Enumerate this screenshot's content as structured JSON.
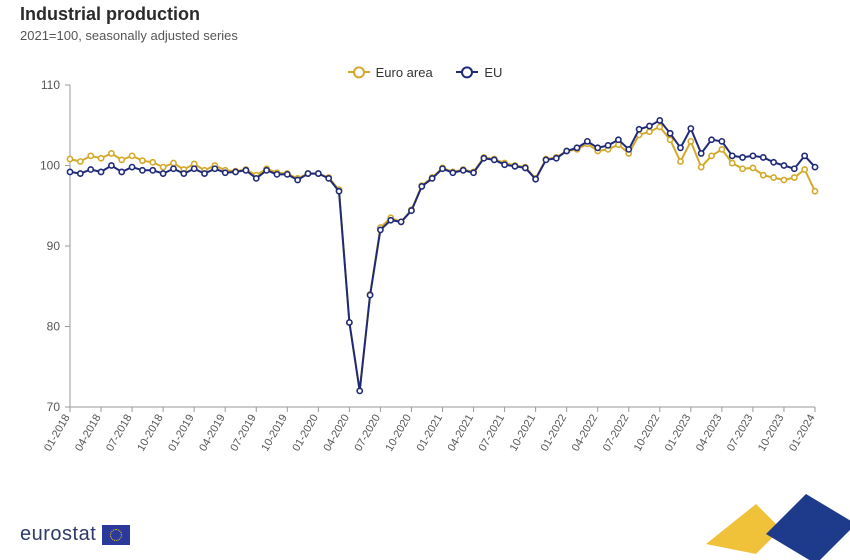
{
  "title": "Industrial production",
  "subtitle": "2021=100, seasonally adjusted series",
  "brand": "eurostat",
  "chart": {
    "type": "line",
    "background_color": "#ffffff",
    "grid_color": "#e6e6e6",
    "axis_color": "#999999",
    "text_color": "#555555",
    "y_axis": {
      "min": 70,
      "max": 110,
      "ticks": [
        70,
        80,
        90,
        100,
        110
      ]
    },
    "x_labels": [
      "01-2018",
      "04-2018",
      "07-2018",
      "10-2018",
      "01-2019",
      "04-2019",
      "07-2019",
      "10-2019",
      "01-2020",
      "04-2020",
      "07-2020",
      "10-2020",
      "01-2021",
      "04-2021",
      "07-2021",
      "10-2021",
      "01-2022",
      "04-2022",
      "07-2022",
      "10-2022",
      "01-2023",
      "04-2023",
      "07-2023",
      "10-2023",
      "01-2024"
    ],
    "x_count": 73,
    "series": [
      {
        "name": "Euro area",
        "color": "#d4a92a",
        "marker": "circle",
        "values": [
          100.8,
          100.5,
          101.2,
          100.9,
          101.5,
          100.7,
          101.2,
          100.6,
          100.4,
          99.8,
          100.3,
          99.5,
          100.2,
          99.4,
          100.0,
          99.4,
          99.3,
          99.5,
          98.8,
          99.6,
          99.1,
          99.0,
          98.4,
          99.0,
          99.0,
          98.5,
          97.0,
          80.5,
          72.0,
          84.0,
          92.3,
          93.5,
          93.0,
          94.5,
          97.5,
          98.5,
          99.7,
          99.2,
          99.5,
          99.2,
          101.0,
          100.8,
          100.3,
          100.0,
          99.8,
          98.4,
          100.8,
          101.0,
          101.8,
          102.0,
          102.7,
          101.8,
          102.0,
          102.6,
          101.5,
          103.8,
          104.2,
          104.8,
          103.2,
          100.5,
          103.0,
          99.8,
          101.2,
          102.0,
          100.3,
          99.6,
          99.7,
          98.8,
          98.5,
          98.2,
          98.5,
          99.5,
          96.8
        ]
      },
      {
        "name": "EU",
        "color": "#1e2a78",
        "marker": "circle",
        "values": [
          99.2,
          99.0,
          99.5,
          99.2,
          100.0,
          99.2,
          99.8,
          99.4,
          99.4,
          99.0,
          99.6,
          99.0,
          99.6,
          99.0,
          99.6,
          99.1,
          99.2,
          99.4,
          98.4,
          99.4,
          98.9,
          98.9,
          98.2,
          99.0,
          99.0,
          98.4,
          96.8,
          80.5,
          72.0,
          83.9,
          92.0,
          93.2,
          93.0,
          94.4,
          97.4,
          98.4,
          99.6,
          99.1,
          99.4,
          99.1,
          100.9,
          100.7,
          100.1,
          99.9,
          99.7,
          98.3,
          100.7,
          100.9,
          101.8,
          102.2,
          103.0,
          102.2,
          102.5,
          103.2,
          102.0,
          104.5,
          104.9,
          105.6,
          104.0,
          102.2,
          104.6,
          101.5,
          103.2,
          103.0,
          101.2,
          101.0,
          101.2,
          101.0,
          100.4,
          100.0,
          99.6,
          101.2,
          99.8
        ]
      }
    ],
    "marker_radius": 2.6,
    "line_width": 2
  },
  "corner_mark": {
    "blue": "#1e3a8a",
    "yellow": "#f0c23a"
  }
}
